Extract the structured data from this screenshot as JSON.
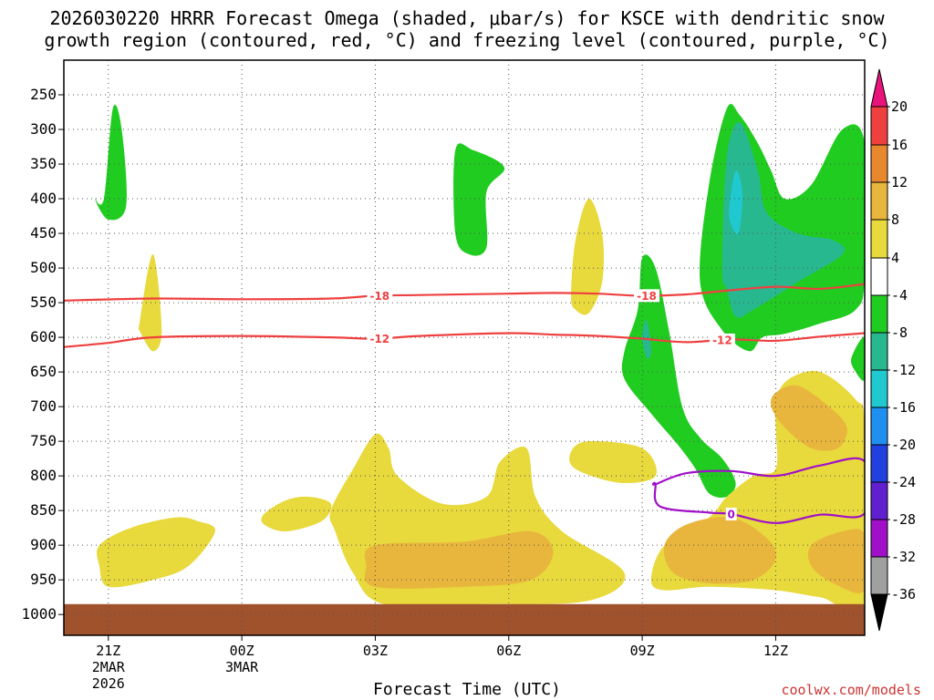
{
  "title": {
    "line1": "2026030220 HRRR Forecast Omega (shaded, μbar/s) for KSCE with dendritic snow",
    "line2": "growth region (contoured, red, °C) and freezing level (contoured, purple, °C)"
  },
  "xaxis": {
    "label": "Forecast Time (UTC)",
    "ticks": [
      {
        "hour": 0,
        "label": "21Z",
        "sub": [
          "2MAR",
          "2026"
        ]
      },
      {
        "hour": 3,
        "label": "00Z",
        "sub": [
          "3MAR"
        ]
      },
      {
        "hour": 6,
        "label": "03Z",
        "sub": []
      },
      {
        "hour": 9,
        "label": "06Z",
        "sub": []
      },
      {
        "hour": 12,
        "label": "09Z",
        "sub": []
      },
      {
        "hour": 15,
        "label": "12Z",
        "sub": []
      }
    ]
  },
  "yaxis": {
    "ticks": [
      250,
      300,
      350,
      400,
      450,
      500,
      550,
      600,
      650,
      700,
      750,
      800,
      850,
      900,
      950,
      1000
    ]
  },
  "colorbar": {
    "labels": [
      "20",
      "16",
      "12",
      "8",
      "4",
      "-4",
      "-8",
      "-12",
      "-16",
      "-20",
      "-24",
      "-28",
      "-32",
      "-36"
    ],
    "colors": {
      "pink": "#e8147a",
      "red": "#ef4040",
      "orange": "#e8882e",
      "gold": "#e8b63c",
      "yellow": "#e8d93c",
      "white": "#ffffff",
      "green": "#20cc20",
      "teal": "#28b890",
      "cyan": "#20c8d0",
      "lightblue": "#2090f0",
      "blue": "#2040e0",
      "indigo": "#6020d0",
      "purple": "#a010c8",
      "gray": "#a0a0a0",
      "black": "#000000"
    }
  },
  "credit": "coolwx.com/models",
  "chart_data": {
    "type": "heatmap",
    "x_range_hours": [
      -1,
      17
    ],
    "y_range_hpa": [
      200,
      1030
    ],
    "ground_level_hpa": 985,
    "ground_color": "#a0522d",
    "contours": [
      {
        "label": "-18",
        "color": "#ef4040",
        "points": [
          [
            -1,
            547
          ],
          [
            1,
            544
          ],
          [
            3,
            545
          ],
          [
            5,
            544
          ],
          [
            6,
            540
          ],
          [
            7,
            539
          ],
          [
            9,
            537
          ],
          [
            10,
            536
          ],
          [
            11,
            537
          ],
          [
            12,
            540
          ],
          [
            13,
            538
          ],
          [
            14,
            532
          ],
          [
            15,
            527
          ],
          [
            16,
            530
          ],
          [
            17,
            523
          ]
        ]
      },
      {
        "label": "-12",
        "color": "#ef4040",
        "points": [
          [
            -1,
            614
          ],
          [
            0,
            608
          ],
          [
            1,
            600
          ],
          [
            3,
            598
          ],
          [
            5,
            600
          ],
          [
            6,
            602
          ],
          [
            7,
            598
          ],
          [
            9,
            594
          ],
          [
            10,
            596
          ],
          [
            11,
            598
          ],
          [
            12,
            602
          ],
          [
            13,
            607
          ],
          [
            14,
            603
          ],
          [
            15,
            605
          ],
          [
            16,
            599
          ],
          [
            17,
            594
          ]
        ]
      },
      {
        "label": "0",
        "color": "#a010c8",
        "points": [
          [
            12.3,
            812
          ],
          [
            12.4,
            844
          ],
          [
            13.5,
            853
          ],
          [
            14,
            855
          ],
          [
            15,
            868
          ],
          [
            16,
            856
          ],
          [
            17,
            854
          ],
          [
            17,
            779
          ],
          [
            16,
            785
          ],
          [
            15,
            800
          ],
          [
            14,
            793
          ],
          [
            13,
            796
          ],
          [
            12.3,
            812
          ]
        ]
      }
    ],
    "regions": [
      {
        "color": "green",
        "points": [
          [
            -0.1,
            400
          ],
          [
            0.1,
            270
          ],
          [
            0.3,
            300
          ],
          [
            0.4,
            410
          ],
          [
            0,
            430
          ],
          [
            -0.3,
            400
          ]
        ]
      },
      {
        "color": "yellow",
        "points": [
          [
            0.7,
            580
          ],
          [
            1.0,
            480
          ],
          [
            1.2,
            590
          ],
          [
            1.0,
            620
          ],
          [
            0.7,
            590
          ]
        ]
      },
      {
        "color": "green",
        "points": [
          [
            7.8,
            450
          ],
          [
            7.8,
            330
          ],
          [
            8.2,
            330
          ],
          [
            8.9,
            355
          ],
          [
            8.5,
            390
          ],
          [
            8.5,
            470
          ],
          [
            8.1,
            480
          ]
        ]
      },
      {
        "color": "yellow",
        "points": [
          [
            10.4,
            540
          ],
          [
            10.5,
            460
          ],
          [
            10.8,
            400
          ],
          [
            11.1,
            450
          ],
          [
            11.1,
            520
          ],
          [
            10.8,
            565
          ],
          [
            10.5,
            560
          ]
        ]
      },
      {
        "color": "yellow",
        "points": [
          [
            -0.2,
            900
          ],
          [
            0.5,
            875
          ],
          [
            1.5,
            860
          ],
          [
            2.0,
            865
          ],
          [
            2.4,
            880
          ],
          [
            1.8,
            930
          ],
          [
            1.0,
            950
          ],
          [
            0,
            960
          ],
          [
            -0.2,
            930
          ]
        ]
      },
      {
        "color": "yellow",
        "points": [
          [
            3.5,
            855
          ],
          [
            4.0,
            835
          ],
          [
            4.5,
            830
          ],
          [
            5.0,
            840
          ],
          [
            4.8,
            865
          ],
          [
            4.0,
            880
          ],
          [
            3.5,
            870
          ]
        ]
      },
      {
        "color": "yellow",
        "points": [
          [
            5.0,
            850
          ],
          [
            5.5,
            790
          ],
          [
            6.0,
            740
          ],
          [
            6.3,
            760
          ],
          [
            6.5,
            800
          ],
          [
            7.5,
            840
          ],
          [
            8.5,
            830
          ],
          [
            8.8,
            780
          ],
          [
            9.4,
            760
          ],
          [
            9.6,
            830
          ],
          [
            10.2,
            880
          ],
          [
            11.6,
            940
          ],
          [
            10.8,
            980
          ],
          [
            8.5,
            985
          ],
          [
            6.2,
            985
          ],
          [
            5.5,
            940
          ],
          [
            5.1,
            880
          ]
        ]
      },
      {
        "color": "gold",
        "points": [
          [
            6.0,
            900
          ],
          [
            8.0,
            895
          ],
          [
            9.5,
            880
          ],
          [
            10.0,
            910
          ],
          [
            9.5,
            950
          ],
          [
            8.0,
            960
          ],
          [
            6.0,
            960
          ],
          [
            5.8,
            930
          ]
        ]
      },
      {
        "color": "yellow",
        "points": [
          [
            10.4,
            765
          ],
          [
            10.8,
            750
          ],
          [
            12.0,
            760
          ],
          [
            12.3,
            800
          ],
          [
            11.5,
            810
          ],
          [
            10.5,
            790
          ]
        ]
      },
      {
        "color": "green",
        "points": [
          [
            11.6,
            620
          ],
          [
            11.9,
            560
          ],
          [
            12.0,
            485
          ],
          [
            12.3,
            500
          ],
          [
            12.6,
            590
          ],
          [
            12.9,
            700
          ],
          [
            13.3,
            745
          ],
          [
            13.8,
            775
          ],
          [
            14.1,
            810
          ],
          [
            13.9,
            830
          ],
          [
            13.5,
            825
          ],
          [
            13.2,
            790
          ],
          [
            12.8,
            755
          ],
          [
            12.2,
            710
          ],
          [
            11.6,
            660
          ]
        ]
      },
      {
        "color": "teal",
        "points": [
          [
            12.0,
            600
          ],
          [
            12.1,
            575
          ],
          [
            12.2,
            620
          ],
          [
            12.1,
            630
          ]
        ]
      },
      {
        "color": "green",
        "points": [
          [
            13.3,
            520
          ],
          [
            13.5,
            380
          ],
          [
            13.9,
            270
          ],
          [
            14.2,
            280
          ],
          [
            14.6,
            320
          ],
          [
            14.9,
            360
          ],
          [
            15.2,
            400
          ],
          [
            15.8,
            380
          ],
          [
            16.5,
            300
          ],
          [
            17.0,
            320
          ],
          [
            17.0,
            510
          ],
          [
            16.8,
            560
          ],
          [
            16.0,
            580
          ],
          [
            15.2,
            595
          ],
          [
            14.7,
            600
          ],
          [
            14.4,
            620
          ],
          [
            13.8,
            590
          ]
        ]
      },
      {
        "color": "teal",
        "points": [
          [
            13.8,
            500
          ],
          [
            13.9,
            340
          ],
          [
            14.2,
            290
          ],
          [
            14.6,
            360
          ],
          [
            14.8,
            420
          ],
          [
            15.5,
            450
          ],
          [
            16.3,
            460
          ],
          [
            16.5,
            480
          ],
          [
            15.5,
            520
          ],
          [
            14.5,
            560
          ],
          [
            14.1,
            570
          ],
          [
            13.9,
            530
          ]
        ]
      },
      {
        "color": "cyan",
        "points": [
          [
            13.95,
            420
          ],
          [
            14.1,
            360
          ],
          [
            14.25,
            390
          ],
          [
            14.2,
            440
          ],
          [
            14.1,
            450
          ]
        ]
      },
      {
        "color": "green",
        "points": [
          [
            16.7,
            630
          ],
          [
            17.0,
            600
          ],
          [
            17.0,
            660
          ],
          [
            16.8,
            650
          ]
        ]
      },
      {
        "color": "yellow",
        "points": [
          [
            13.9,
            830
          ],
          [
            14.5,
            800
          ],
          [
            15.0,
            790
          ],
          [
            15.0,
            730
          ],
          [
            15.0,
            690
          ],
          [
            15.3,
            660
          ],
          [
            16.0,
            650
          ],
          [
            16.8,
            690
          ],
          [
            17.0,
            730
          ],
          [
            17.0,
            980
          ],
          [
            16.0,
            975
          ],
          [
            15.0,
            965
          ],
          [
            13.5,
            960
          ],
          [
            12.5,
            965
          ],
          [
            12.2,
            950
          ],
          [
            12.5,
            900
          ],
          [
            13.5,
            860
          ]
        ]
      },
      {
        "color": "gold",
        "points": [
          [
            15.0,
            680
          ],
          [
            15.5,
            670
          ],
          [
            16.2,
            700
          ],
          [
            16.6,
            730
          ],
          [
            16.4,
            760
          ],
          [
            15.8,
            760
          ],
          [
            15.2,
            730
          ],
          [
            14.9,
            700
          ]
        ]
      },
      {
        "color": "gold",
        "points": [
          [
            12.5,
            900
          ],
          [
            13.0,
            870
          ],
          [
            14.0,
            860
          ],
          [
            14.8,
            890
          ],
          [
            15.0,
            920
          ],
          [
            14.5,
            950
          ],
          [
            13.5,
            955
          ],
          [
            12.7,
            940
          ]
        ]
      },
      {
        "color": "gold",
        "points": [
          [
            15.8,
            900
          ],
          [
            16.5,
            880
          ],
          [
            17.0,
            885
          ],
          [
            17.0,
            965
          ],
          [
            16.3,
            955
          ],
          [
            15.8,
            930
          ]
        ]
      }
    ]
  }
}
